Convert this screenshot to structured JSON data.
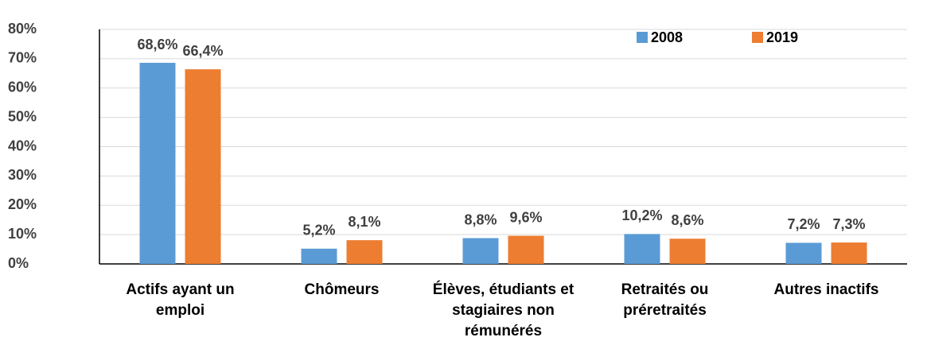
{
  "chart_data": {
    "type": "bar",
    "categories": [
      "Actifs ayant un emploi",
      "Chômeurs",
      "Élèves, étudiants et stagiaires non rémunérés",
      "Retraités ou préretraités",
      "Autres inactifs"
    ],
    "series": [
      {
        "name": "2008",
        "color": "#5b9bd5",
        "values": [
          68.6,
          5.2,
          8.8,
          10.2,
          7.2
        ],
        "value_labels": [
          "68,6%",
          "5,2%",
          "8,8%",
          "10,2%",
          "7,2%"
        ]
      },
      {
        "name": "2019",
        "color": "#ed7d31",
        "values": [
          66.4,
          8.1,
          9.6,
          8.6,
          7.3
        ],
        "value_labels": [
          "66,4%",
          "8,1%",
          "9,6%",
          "8,6%",
          "7,3%"
        ]
      }
    ],
    "ylim": [
      0,
      80
    ],
    "yticks": [
      {
        "value": 0,
        "label": "0%"
      },
      {
        "value": 10,
        "label": "10%"
      },
      {
        "value": 20,
        "label": "20%"
      },
      {
        "value": 30,
        "label": "30%"
      },
      {
        "value": 40,
        "label": "40%"
      },
      {
        "value": 50,
        "label": "50%"
      },
      {
        "value": 60,
        "label": "60%"
      },
      {
        "value": 70,
        "label": "70%"
      },
      {
        "value": 80,
        "label": "80%"
      }
    ],
    "grid": true,
    "legend": "top-right"
  }
}
